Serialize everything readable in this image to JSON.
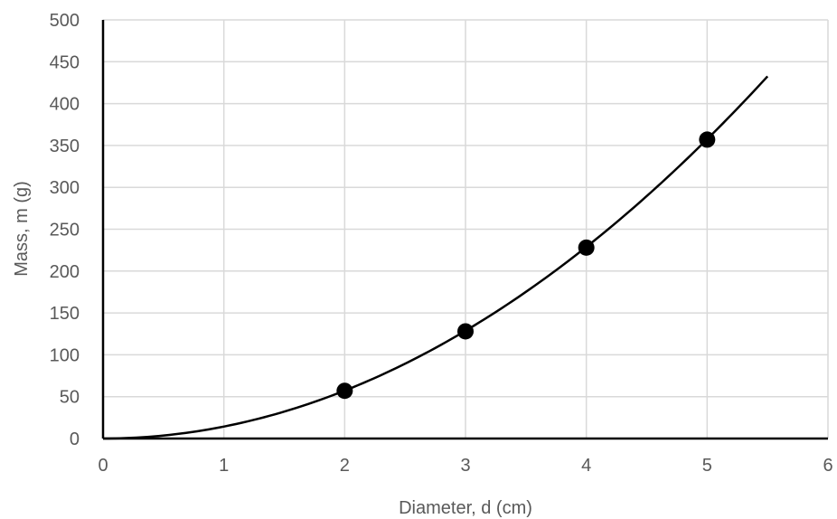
{
  "chart_data": {
    "type": "scatter",
    "title": "",
    "xlabel": "Diameter, d (cm)",
    "ylabel": "Mass, m (g)",
    "xlim": [
      0,
      6
    ],
    "ylim": [
      0,
      500
    ],
    "x_ticks": [
      0,
      1,
      2,
      3,
      4,
      5,
      6
    ],
    "y_ticks": [
      0,
      50,
      100,
      150,
      200,
      250,
      300,
      350,
      400,
      450,
      500
    ],
    "grid": true,
    "legend": "none",
    "series": [
      {
        "x": [
          2,
          3,
          4,
          5
        ],
        "y": [
          57,
          128,
          228,
          357
        ],
        "marker": "circle",
        "color": "#000000"
      }
    ],
    "fit_curve": {
      "type": "power",
      "coefficient": 14.3,
      "exponent": 2,
      "x_range": [
        0,
        5.5
      ],
      "color": "#000000"
    }
  },
  "colors": {
    "grid": "#d9d9d9",
    "axis": "#000000",
    "text": "#595959"
  }
}
